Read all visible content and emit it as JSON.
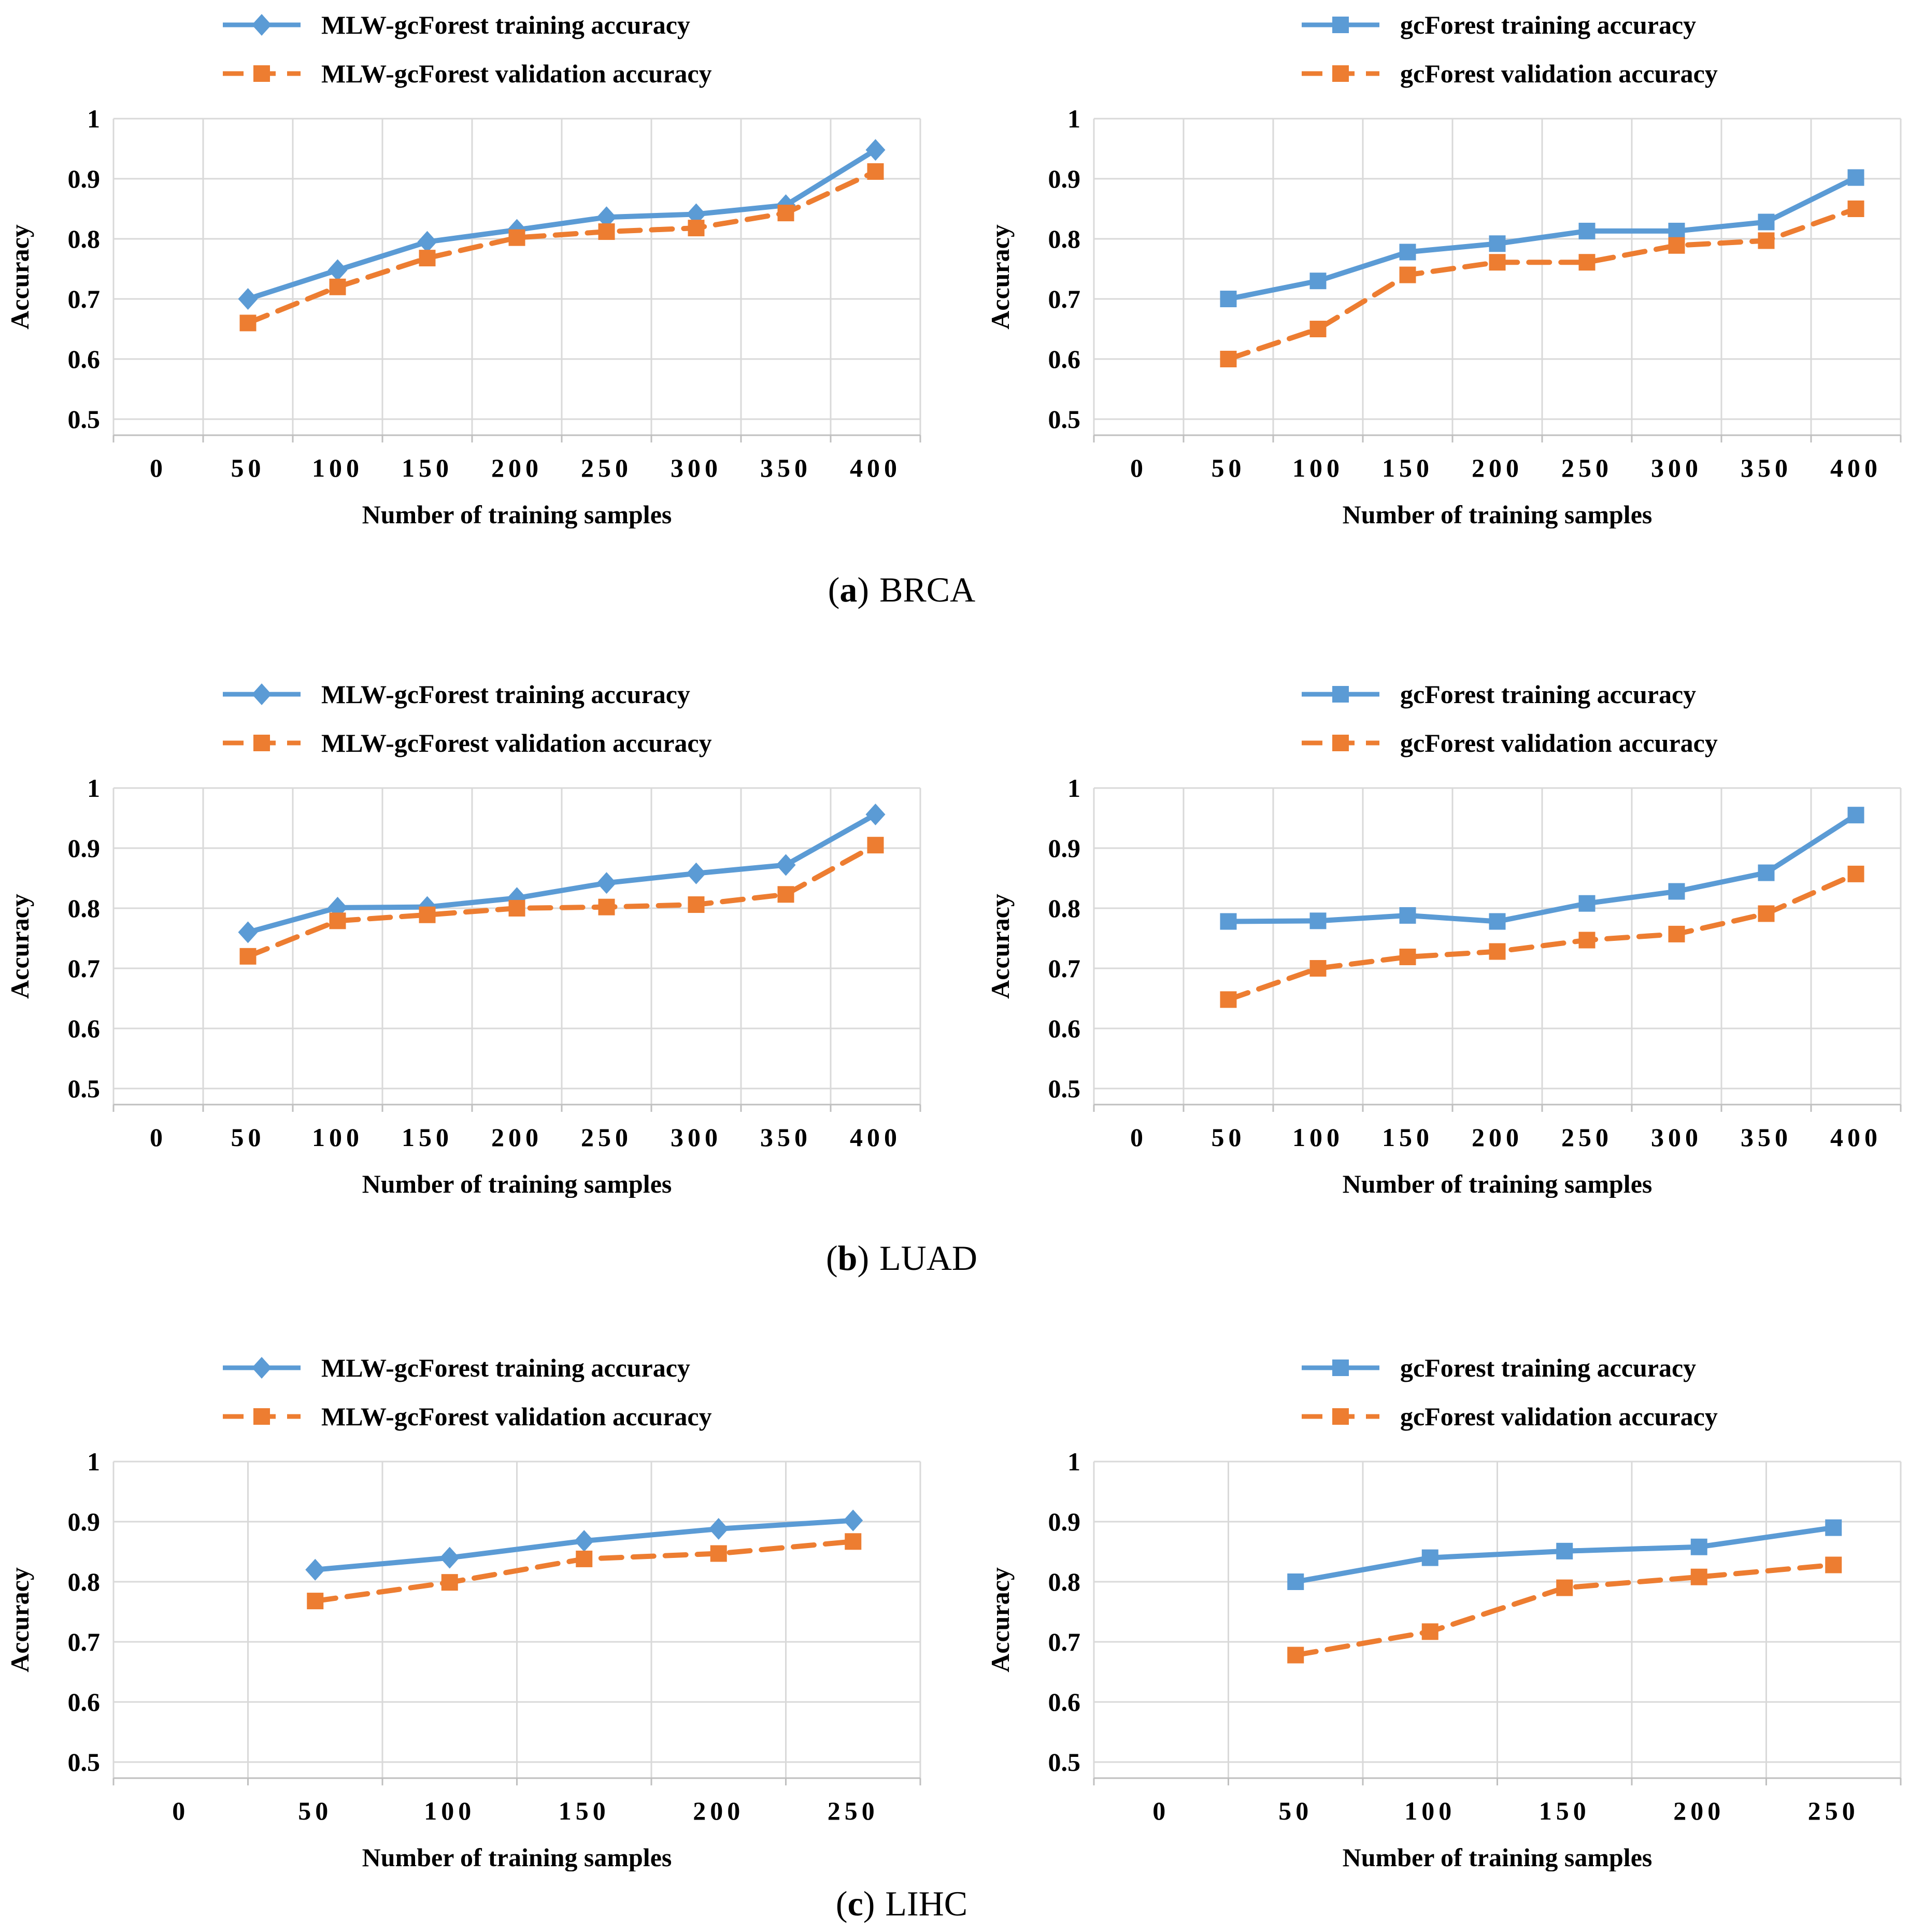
{
  "figure": {
    "captions": [
      {
        "prefix": "(",
        "letter": "a",
        "suffix": ")",
        "label": "BRCA"
      },
      {
        "prefix": "(",
        "letter": "b",
        "suffix": ")",
        "label": "LUAD"
      },
      {
        "prefix": "(",
        "letter": "c",
        "suffix": ")",
        "label": "LIHC"
      }
    ]
  },
  "colors": {
    "training": "#5B9BD5",
    "validation": "#ED7D31",
    "grid": "#D9D9D9",
    "axis": "#BFBFBF",
    "text": "#000000",
    "background": "#FFFFFF"
  },
  "axes": {
    "xlabel": "Number of training samples",
    "ylabel": "Accuracy",
    "yticks": [
      {
        "v": 1.0,
        "label": "1"
      },
      {
        "v": 0.9,
        "label": "0.9"
      },
      {
        "v": 0.8,
        "label": "0.8"
      },
      {
        "v": 0.7,
        "label": "0.7"
      },
      {
        "v": 0.6,
        "label": "0.6"
      },
      {
        "v": 0.5,
        "label": "0.5"
      }
    ],
    "ylim": [
      0.473,
      1.0
    ],
    "grid": true,
    "legend_position": "top"
  },
  "chart_data": [
    {
      "id": "brca-mlw-gcforest",
      "panel": "a-left",
      "dataset": "BRCA",
      "type": "line",
      "xlabel": "Number of training samples",
      "ylabel": "Accuracy",
      "ylim": [
        0.473,
        1.0
      ],
      "categories": [
        0,
        50,
        100,
        150,
        200,
        250,
        300,
        350,
        400
      ],
      "series": [
        {
          "name": "MLW-gcForest training accuracy",
          "role": "training",
          "color": "#5B9BD5",
          "style": "solid",
          "marker": "diamond",
          "x": [
            50,
            100,
            150,
            200,
            250,
            300,
            350,
            400
          ],
          "y": [
            0.7,
            0.748,
            0.795,
            0.815,
            0.836,
            0.841,
            0.856,
            0.948
          ]
        },
        {
          "name": "MLW-gcForest validation accuracy",
          "role": "validation",
          "color": "#ED7D31",
          "style": "dashed",
          "marker": "square",
          "x": [
            50,
            100,
            150,
            200,
            250,
            300,
            350,
            400
          ],
          "y": [
            0.66,
            0.72,
            0.768,
            0.802,
            0.812,
            0.818,
            0.843,
            0.912
          ]
        }
      ]
    },
    {
      "id": "brca-gcforest",
      "panel": "a-right",
      "dataset": "BRCA",
      "type": "line",
      "xlabel": "Number of training samples",
      "ylabel": "Accuracy",
      "ylim": [
        0.473,
        1.0
      ],
      "categories": [
        0,
        50,
        100,
        150,
        200,
        250,
        300,
        350,
        400
      ],
      "series": [
        {
          "name": "gcForest training accuracy",
          "role": "training",
          "color": "#5B9BD5",
          "style": "solid",
          "marker": "square",
          "x": [
            50,
            100,
            150,
            200,
            250,
            300,
            350,
            400
          ],
          "y": [
            0.7,
            0.73,
            0.778,
            0.792,
            0.813,
            0.813,
            0.828,
            0.902
          ]
        },
        {
          "name": "gcForest validation accuracy",
          "role": "validation",
          "color": "#ED7D31",
          "style": "dashed",
          "marker": "square",
          "x": [
            50,
            100,
            150,
            200,
            250,
            300,
            350,
            400
          ],
          "y": [
            0.6,
            0.65,
            0.74,
            0.761,
            0.761,
            0.789,
            0.797,
            0.85
          ]
        }
      ]
    },
    {
      "id": "luad-mlw-gcforest",
      "panel": "b-left",
      "dataset": "LUAD",
      "type": "line",
      "xlabel": "Number of training samples",
      "ylabel": "Accuracy",
      "ylim": [
        0.473,
        1.0
      ],
      "categories": [
        0,
        50,
        100,
        150,
        200,
        250,
        300,
        350,
        400
      ],
      "series": [
        {
          "name": "MLW-gcForest training accuracy",
          "role": "training",
          "color": "#5B9BD5",
          "style": "solid",
          "marker": "diamond",
          "x": [
            50,
            100,
            150,
            200,
            250,
            300,
            350,
            400
          ],
          "y": [
            0.76,
            0.801,
            0.802,
            0.817,
            0.842,
            0.858,
            0.872,
            0.956
          ]
        },
        {
          "name": "MLW-gcForest validation accuracy",
          "role": "validation",
          "color": "#ED7D31",
          "style": "dashed",
          "marker": "square",
          "x": [
            50,
            100,
            150,
            200,
            250,
            300,
            350,
            400
          ],
          "y": [
            0.72,
            0.779,
            0.789,
            0.8,
            0.802,
            0.806,
            0.823,
            0.905
          ]
        }
      ]
    },
    {
      "id": "luad-gcforest",
      "panel": "b-right",
      "dataset": "LUAD",
      "type": "line",
      "xlabel": "Number of training samples",
      "ylabel": "Accuracy",
      "ylim": [
        0.473,
        1.0
      ],
      "categories": [
        0,
        50,
        100,
        150,
        200,
        250,
        300,
        350,
        400
      ],
      "series": [
        {
          "name": "gcForest training accuracy",
          "role": "training",
          "color": "#5B9BD5",
          "style": "solid",
          "marker": "square",
          "x": [
            50,
            100,
            150,
            200,
            250,
            300,
            350,
            400
          ],
          "y": [
            0.778,
            0.779,
            0.788,
            0.778,
            0.808,
            0.828,
            0.859,
            0.955
          ]
        },
        {
          "name": "gcForest validation accuracy",
          "role": "validation",
          "color": "#ED7D31",
          "style": "dashed",
          "marker": "square",
          "x": [
            50,
            100,
            150,
            200,
            250,
            300,
            350,
            400
          ],
          "y": [
            0.648,
            0.7,
            0.719,
            0.728,
            0.747,
            0.757,
            0.791,
            0.857
          ]
        }
      ]
    },
    {
      "id": "lihc-mlw-gcforest",
      "panel": "c-left",
      "dataset": "LIHC",
      "type": "line",
      "xlabel": "Number of training samples",
      "ylabel": "Accuracy",
      "ylim": [
        0.473,
        1.0
      ],
      "categories": [
        0,
        50,
        100,
        150,
        200,
        250
      ],
      "series": [
        {
          "name": "MLW-gcForest training accuracy",
          "role": "training",
          "color": "#5B9BD5",
          "style": "solid",
          "marker": "diamond",
          "x": [
            50,
            100,
            150,
            200,
            250
          ],
          "y": [
            0.82,
            0.84,
            0.868,
            0.888,
            0.902
          ]
        },
        {
          "name": "MLW-gcForest validation accuracy",
          "role": "validation",
          "color": "#ED7D31",
          "style": "dashed",
          "marker": "square",
          "x": [
            50,
            100,
            150,
            200,
            250
          ],
          "y": [
            0.768,
            0.799,
            0.838,
            0.847,
            0.867
          ]
        }
      ]
    },
    {
      "id": "lihc-gcforest",
      "panel": "c-right",
      "dataset": "LIHC",
      "type": "line",
      "xlabel": "Number of training samples",
      "ylabel": "Accuracy",
      "ylim": [
        0.473,
        1.0
      ],
      "categories": [
        0,
        50,
        100,
        150,
        200,
        250
      ],
      "series": [
        {
          "name": "gcForest training accuracy",
          "role": "training",
          "color": "#5B9BD5",
          "style": "solid",
          "marker": "square",
          "x": [
            50,
            100,
            150,
            200,
            250
          ],
          "y": [
            0.8,
            0.84,
            0.851,
            0.858,
            0.89
          ]
        },
        {
          "name": "gcForest validation accuracy",
          "role": "validation",
          "color": "#ED7D31",
          "style": "dashed",
          "marker": "square",
          "x": [
            50,
            100,
            150,
            200,
            250
          ],
          "y": [
            0.678,
            0.717,
            0.79,
            0.808,
            0.828
          ]
        }
      ]
    }
  ]
}
